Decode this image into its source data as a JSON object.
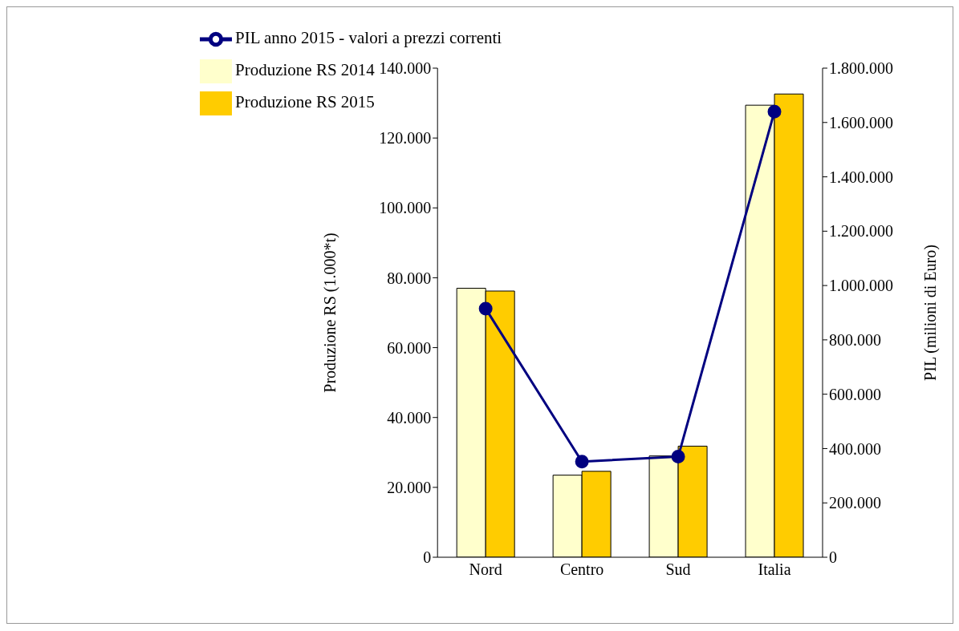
{
  "chart_data": {
    "type": "bar",
    "xlabel": null,
    "ylabel": "Produzione RS (1.000*t)",
    "y2label": "PIL (milioni di Euro)",
    "categories": [
      "Nord",
      "Centro",
      "Sud",
      "Italia"
    ],
    "series": [
      {
        "name": "Produzione RS 2014",
        "color": "#ffffcc",
        "values": [
          77000,
          23500,
          29000,
          129400
        ]
      },
      {
        "name": "Produzione RS 2015",
        "color": "#ffcc00",
        "values": [
          76200,
          24600,
          31800,
          132600
        ]
      },
      {
        "name": "PIL anno 2015 - valori a prezzi correnti",
        "color": "#000080",
        "type": "line",
        "axis": "y2",
        "marker": "circle",
        "values": [
          915000,
          352000,
          370000,
          1640000
        ]
      }
    ],
    "ylim": [
      0,
      140000
    ],
    "yticks": [
      {
        "value": 0,
        "label": "0"
      },
      {
        "value": 20000,
        "label": "20.000"
      },
      {
        "value": 40000,
        "label": "40.000"
      },
      {
        "value": 60000,
        "label": "60.000"
      },
      {
        "value": 80000,
        "label": "80.000"
      },
      {
        "value": 100000,
        "label": "100.000"
      },
      {
        "value": 120000,
        "label": "120.000"
      },
      {
        "value": 140000,
        "label": "140.000"
      }
    ],
    "y2lim": [
      0,
      1800000
    ],
    "y2ticks": [
      {
        "value": 0,
        "label": "0"
      },
      {
        "value": 200000,
        "label": "200.000"
      },
      {
        "value": 400000,
        "label": "400.000"
      },
      {
        "value": 600000,
        "label": "600.000"
      },
      {
        "value": 800000,
        "label": "800.000"
      },
      {
        "value": 1000000,
        "label": "1.000.000"
      },
      {
        "value": 1200000,
        "label": "1.200.000"
      },
      {
        "value": 1400000,
        "label": "1.400.000"
      },
      {
        "value": 1600000,
        "label": "1.600.000"
      },
      {
        "value": 1800000,
        "label": "1.800.000"
      }
    ],
    "grid": false,
    "legend": "top left"
  }
}
